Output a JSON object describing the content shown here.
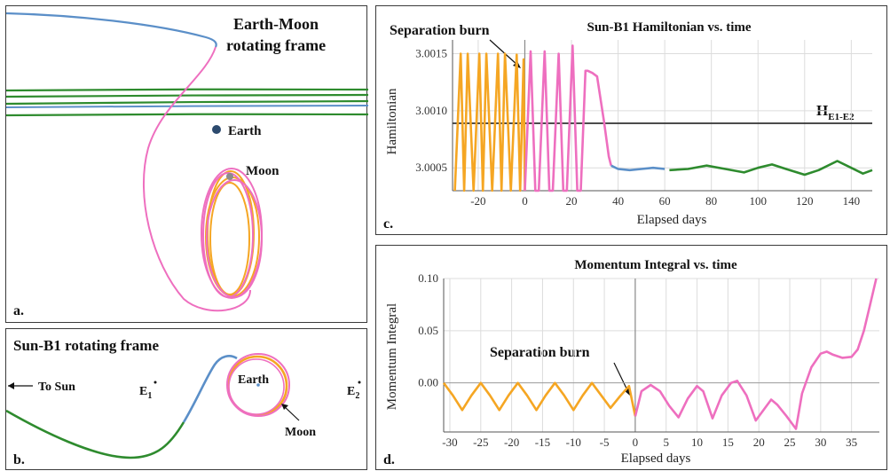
{
  "panel_a": {
    "letter": "a.",
    "title_line1": "Earth-Moon",
    "title_line2": "rotating frame",
    "earth_label": "Earth",
    "moon_label": "Moon",
    "colors": {
      "blue": "#5b8fc8",
      "green": "#2e8b2e",
      "pink": "#ee6fbf",
      "orange": "#f5a623",
      "earth": "#2c4a6e",
      "moon": "#8c8c8c"
    }
  },
  "panel_b": {
    "letter": "b.",
    "title": "Sun-B1 rotating frame",
    "to_sun": "To Sun",
    "e1_label": "E",
    "e1_sub": "1",
    "e2_label": "E",
    "e2_sub": "2",
    "earth_label": "Earth",
    "moon_label": "Moon"
  },
  "panel_c": {
    "letter": "c.",
    "annotation": "Separation burn",
    "h_label": "H",
    "h_sub": "E1-E2",
    "h_level": 3.00089
  },
  "panel_d": {
    "letter": "d.",
    "annotation": "Separation burn"
  },
  "chart_data": [
    {
      "type": "line",
      "title": "Sun-B1 Hamiltonian vs. time",
      "xlabel": "Elapsed days",
      "ylabel": "Hamiltonian",
      "xlim": [
        -31,
        149
      ],
      "ylim": [
        3.0003,
        3.00162
      ],
      "x_ticks": [
        -20,
        0,
        20,
        40,
        60,
        80,
        100,
        120,
        140
      ],
      "y_ticks": [
        3.0005,
        3.001,
        3.0015
      ],
      "y_tick_labels": [
        "3.0005",
        "3.0010",
        "3.0015"
      ],
      "reference_line": {
        "value": 3.00089
      },
      "series": [
        {
          "color": "#f5a623",
          "segment": "orange",
          "x": [
            -30,
            -27.5,
            -26,
            -24.5,
            -22,
            -19.5,
            -18,
            -16.5,
            -14,
            -11.5,
            -10,
            -8.5,
            -6,
            -3.5,
            -2,
            -0.5,
            0
          ],
          "y": [
            3.0003,
            3.0015,
            3.0003,
            3.0015,
            3.0003,
            3.0015,
            3.0003,
            3.0015,
            3.0003,
            3.0015,
            3.0003,
            3.0015,
            3.0003,
            3.00149,
            3.0003,
            3.00145,
            3.0003
          ]
        },
        {
          "color": "#ee6fbf",
          "segment": "pink",
          "x": [
            0,
            2.5,
            4.5,
            6,
            8.5,
            10.5,
            12,
            14.5,
            16.5,
            18,
            20.5,
            22.5,
            24,
            26,
            27,
            29,
            31,
            34,
            36,
            37
          ],
          "y": [
            3.0003,
            3.00152,
            3.0003,
            3.0003,
            3.00152,
            3.0003,
            3.0003,
            3.0015,
            3.0003,
            3.0003,
            3.00157,
            3.0003,
            3.0003,
            3.00135,
            3.00135,
            3.00133,
            3.0013,
            3.0009,
            3.0006,
            3.00052
          ]
        },
        {
          "color": "#5b8fc8",
          "segment": "blue",
          "x": [
            37,
            40,
            45,
            50,
            55,
            60
          ],
          "y": [
            3.00052,
            3.00049,
            3.00048,
            3.00049,
            3.0005,
            3.00049
          ]
        },
        {
          "color": "#2e8b2e",
          "segment": "green",
          "x": [
            62,
            70,
            78,
            86,
            94,
            100,
            106,
            112,
            120,
            126,
            134,
            140,
            145,
            149
          ],
          "y": [
            3.00048,
            3.00049,
            3.00052,
            3.00049,
            3.00046,
            3.0005,
            3.00053,
            3.00049,
            3.00044,
            3.00048,
            3.00056,
            3.0005,
            3.00045,
            3.00048
          ]
        }
      ]
    },
    {
      "type": "line",
      "title": "Momentum Integral vs. time",
      "xlabel": "Elapsed days",
      "ylabel": "Momentum Integral",
      "xlim": [
        -31,
        39.5
      ],
      "ylim": [
        -0.047,
        0.1
      ],
      "x_ticks": [
        -30,
        -25,
        -20,
        -15,
        -10,
        -5,
        0,
        5,
        10,
        15,
        20,
        25,
        30,
        35
      ],
      "y_ticks": [
        0.0,
        0.05,
        0.1
      ],
      "y_tick_labels": [
        "0.00",
        "0.05",
        "0.10"
      ],
      "series": [
        {
          "color": "#f5a623",
          "segment": "orange",
          "x": [
            -31,
            -29.5,
            -28,
            -26.5,
            -25,
            -23.5,
            -22,
            -20.5,
            -19,
            -17.5,
            -16,
            -14.5,
            -13,
            -11.5,
            -10,
            -8.5,
            -7,
            -5.5,
            -4,
            -2.5,
            -1,
            0
          ],
          "y": [
            0.0,
            -0.012,
            -0.026,
            -0.012,
            0.0,
            -0.012,
            -0.026,
            -0.012,
            0.0,
            -0.012,
            -0.026,
            -0.012,
            0.0,
            -0.012,
            -0.026,
            -0.012,
            0.0,
            -0.012,
            -0.024,
            -0.013,
            -0.003,
            -0.032
          ]
        },
        {
          "color": "#ee6fbf",
          "segment": "pink",
          "x": [
            0,
            1,
            2.5,
            4,
            5.5,
            7,
            8.5,
            10,
            11,
            12.5,
            14,
            15.5,
            16.5,
            18,
            19.5,
            20.5,
            22,
            23,
            24.5,
            26,
            27,
            28.5,
            30,
            31,
            32,
            33.5,
            35,
            36,
            37,
            38,
            39
          ],
          "y": [
            -0.032,
            -0.008,
            -0.002,
            -0.008,
            -0.022,
            -0.033,
            -0.015,
            -0.003,
            -0.008,
            -0.034,
            -0.012,
            0.0,
            0.002,
            -0.012,
            -0.036,
            -0.028,
            -0.016,
            -0.021,
            -0.032,
            -0.044,
            -0.01,
            0.015,
            0.028,
            0.03,
            0.027,
            0.024,
            0.025,
            0.032,
            0.05,
            0.075,
            0.1
          ]
        }
      ]
    }
  ]
}
